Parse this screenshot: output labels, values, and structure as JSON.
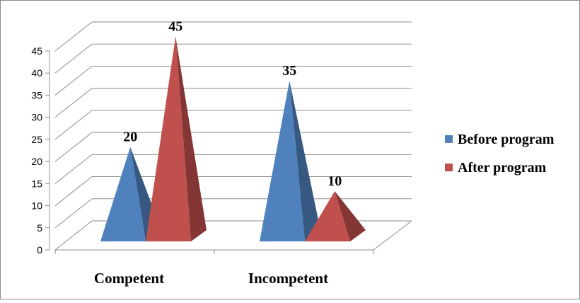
{
  "chart_data": {
    "type": "bar",
    "style": "3d-pyramid",
    "title": "",
    "categories": [
      "Competent",
      "Incompetent"
    ],
    "series": [
      {
        "name": "Before program",
        "values": [
          20,
          35
        ],
        "color": "#4F81BD"
      },
      {
        "name": "After program",
        "values": [
          45,
          10
        ],
        "color": "#C0504D"
      }
    ],
    "data_labels": [
      [
        "20",
        "35"
      ],
      [
        "45",
        "10"
      ]
    ],
    "ylim": [
      0,
      45
    ],
    "yticks": [
      "0",
      "5",
      "10",
      "15",
      "20",
      "25",
      "30",
      "35",
      "40",
      "45"
    ],
    "grid": true,
    "legend_position": "right"
  }
}
